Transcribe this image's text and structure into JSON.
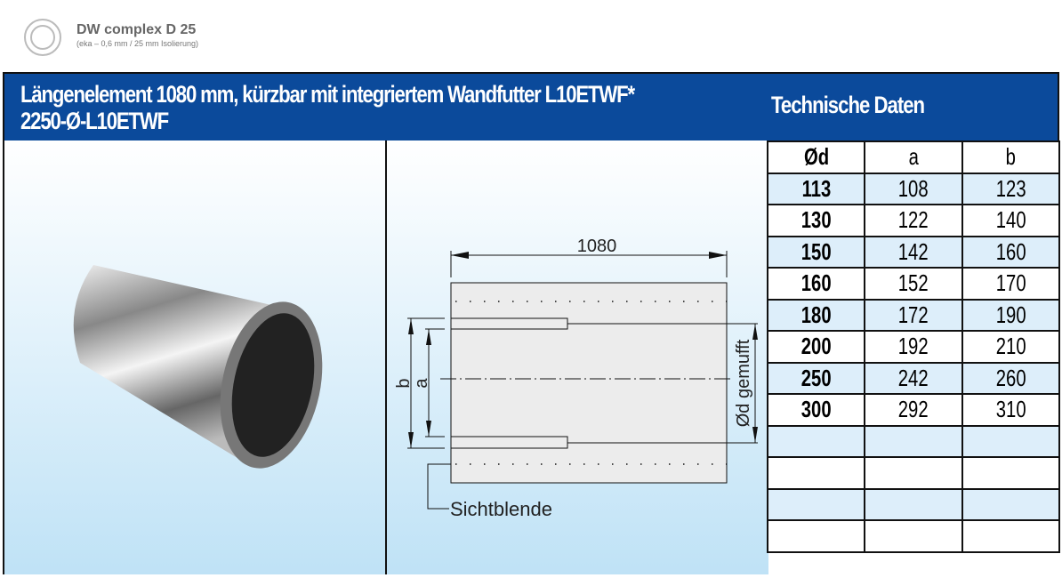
{
  "brand": {
    "title": "DW complex D 25",
    "subtitle": "(eka – 0,6 mm / 25 mm Isolierung)"
  },
  "header": {
    "line1": "Längenelement 1080 mm, kürzbar mit integriertem Wandfutter L10ETWF*",
    "line2": "2250-Ø-L10ETWF",
    "right": "Technische Daten"
  },
  "drawing": {
    "length": "1080",
    "label_b": "b",
    "label_a": "a",
    "label_d": "Ød gemufft",
    "label_blende": "Sichtblende"
  },
  "table": {
    "headers": [
      "Ød",
      "a",
      "b"
    ],
    "rows": [
      [
        "113",
        "108",
        "123"
      ],
      [
        "130",
        "122",
        "140"
      ],
      [
        "150",
        "142",
        "160"
      ],
      [
        "160",
        "152",
        "170"
      ],
      [
        "180",
        "172",
        "190"
      ],
      [
        "200",
        "192",
        "210"
      ],
      [
        "250",
        "242",
        "260"
      ],
      [
        "300",
        "292",
        "310"
      ],
      [
        "",
        "",
        ""
      ],
      [
        "",
        "",
        ""
      ],
      [
        "",
        "",
        ""
      ],
      [
        "",
        "",
        ""
      ]
    ]
  },
  "colors": {
    "header_bg": "#0b4a9b",
    "row_alt": "#ddeefa"
  }
}
